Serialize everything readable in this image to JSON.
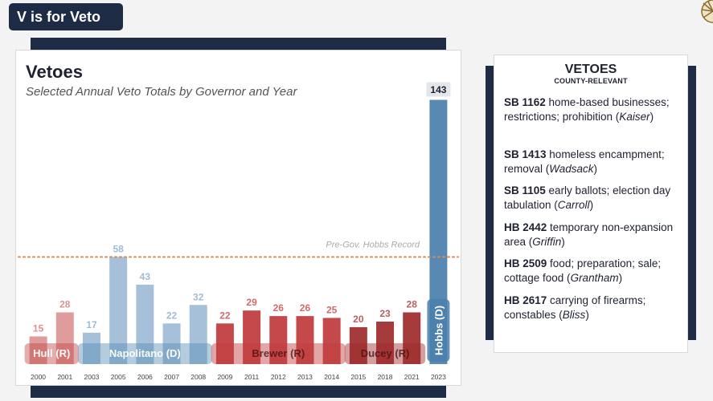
{
  "header": {
    "title": "V is for Veto"
  },
  "chart_data": {
    "type": "bar",
    "title": "Vetoes",
    "subtitle": "Selected Annual Veto Totals by Governor and Year",
    "categories": [
      "2000",
      "2001",
      "2003",
      "2005",
      "2006",
      "2007",
      "2008",
      "2009",
      "2011",
      "2012",
      "2013",
      "2014",
      "2015",
      "2018",
      "2021",
      "2023"
    ],
    "values": [
      15,
      28,
      17,
      58,
      43,
      22,
      32,
      22,
      29,
      26,
      26,
      25,
      20,
      23,
      28,
      143
    ],
    "governor_of_bar": [
      "Hull",
      "Hull",
      "Napolitano",
      "Napolitano",
      "Napolitano",
      "Napolitano",
      "Napolitano",
      "Brewer",
      "Brewer",
      "Brewer",
      "Brewer",
      "Brewer",
      "Ducey",
      "Ducey",
      "Ducey",
      "Hobbs"
    ],
    "governors": [
      {
        "key": "Hull",
        "label": "Hull (R)",
        "color": "#c44a4a",
        "light": true
      },
      {
        "key": "Napolitano",
        "label": "Napolitano (D)",
        "color": "#5b8db8",
        "light": true
      },
      {
        "key": "Brewer",
        "label": "Brewer (R)",
        "color": "#c0393b",
        "light": false
      },
      {
        "key": "Ducey",
        "label": "Ducey (R)",
        "color": "#9e2a2b",
        "light": false
      },
      {
        "key": "Hobbs",
        "label": "Hobbs (D)",
        "color": "#4a7fab",
        "light": false
      }
    ],
    "reference_line": {
      "value": 58,
      "label": "Pre-Gov. Hobbs Record",
      "color": "#e08a4e"
    },
    "ylim": [
      0,
      148
    ],
    "grid": false
  },
  "sidebar": {
    "title": "VETOES",
    "subtitle": "COUNTY-RELEVANT",
    "bills": [
      {
        "id": "SB 1162",
        "desc": "home-based businesses; restrictions; prohibition",
        "sponsor": "Kaiser"
      },
      {
        "id": "SB 1413",
        "desc": "homeless encampment; removal",
        "sponsor": "Wadsack"
      },
      {
        "id": "SB 1105",
        "desc": "early ballots; election day tabulation",
        "sponsor": "Carroll"
      },
      {
        "id": "HB 2442",
        "desc": "temporary non-expansion area",
        "sponsor": "Griffin"
      },
      {
        "id": "HB 2509",
        "desc": "food; preparation; sale; cottage food",
        "sponsor": "Grantham"
      },
      {
        "id": "HB 2617",
        "desc": "carrying of firearms; constables",
        "sponsor": "Bliss"
      }
    ]
  }
}
